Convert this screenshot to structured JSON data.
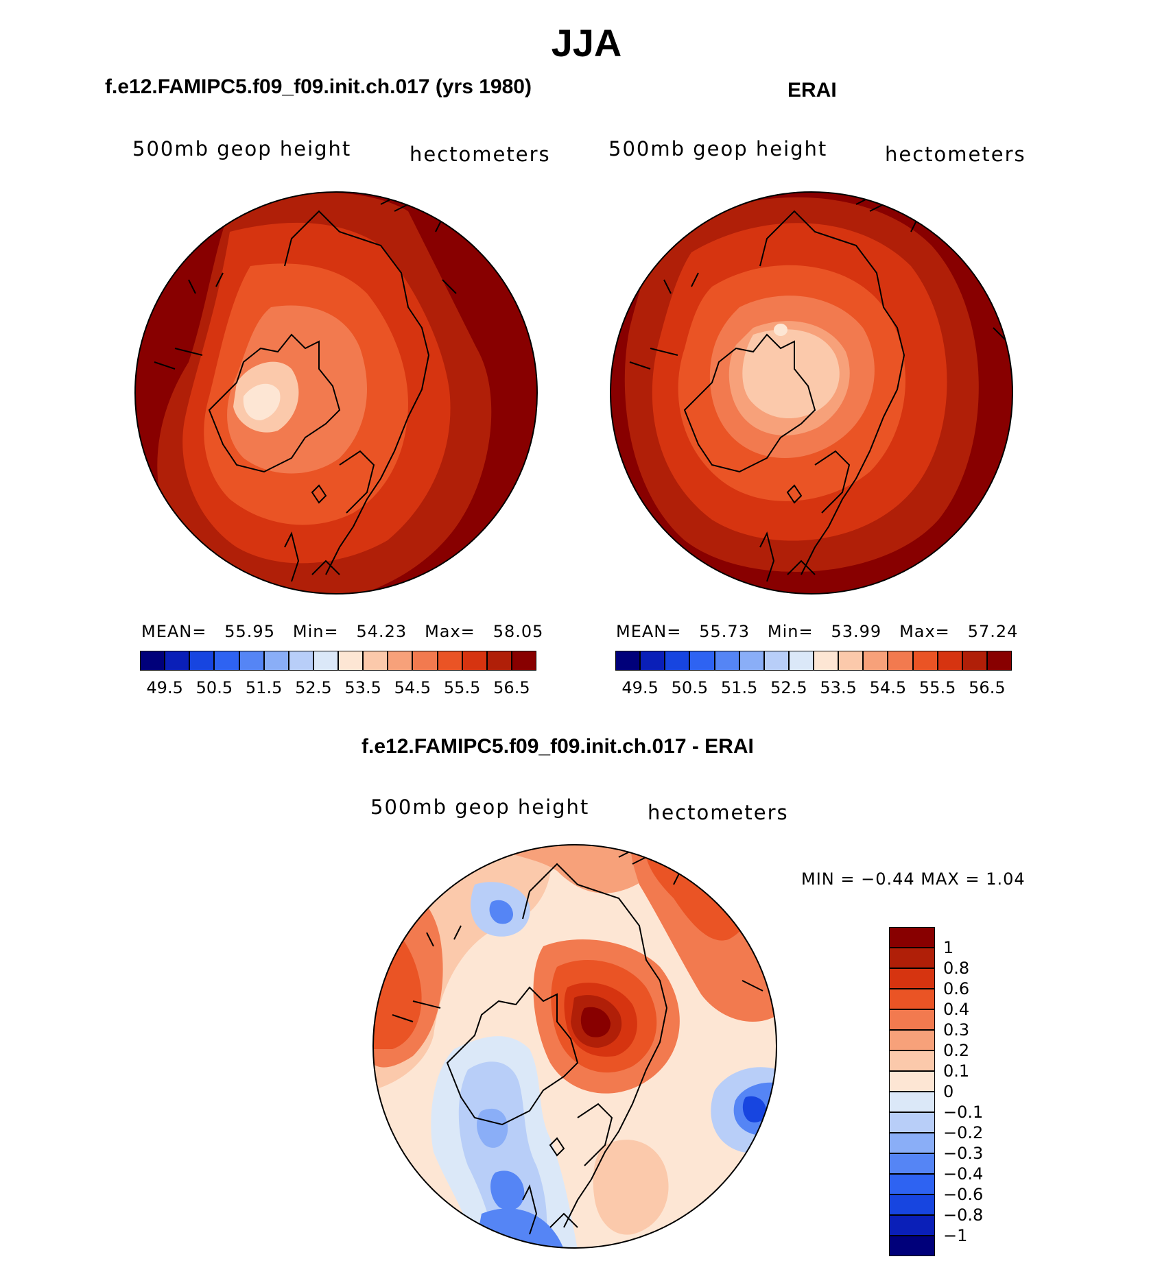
{
  "figure": {
    "title": "JJA",
    "left_panel": {
      "title": "f.e12.FAMIPC5.f09_f09.init.ch.017 (yrs 1980)",
      "variable": "500mb geop height",
      "units": "hectometers",
      "mean_label": "MEAN=",
      "mean": "55.95",
      "min_label": "Min=",
      "min": "54.23",
      "max_label": "Max=",
      "max": "58.05"
    },
    "right_panel": {
      "title": "ERAI",
      "variable": "500mb geop height",
      "units": "hectometers",
      "mean_label": "MEAN=",
      "mean": "55.73",
      "min_label": "Min=",
      "min": "53.99",
      "max_label": "Max=",
      "max": "57.24"
    },
    "diff_panel": {
      "title": "f.e12.FAMIPC5.f09_f09.init.ch.017 - ERAI",
      "variable": "500mb geop height",
      "units": "hectometers",
      "minmax_text": "MIN =   −0.44 MAX =     1.04"
    }
  },
  "colors": {
    "abs_scale": [
      "#00007a",
      "#0a1fb8",
      "#1745e0",
      "#2e63f2",
      "#5585f5",
      "#8aaef7",
      "#b8cef8",
      "#dbe8f8",
      "#fde6d4",
      "#fbc9ab",
      "#f7a17a",
      "#f27a4f",
      "#ea5425",
      "#d63410",
      "#b01f08",
      "#880000"
    ],
    "diff_scale": [
      "#0a1fb8",
      "#1745e0",
      "#2e63f2",
      "#5585f5",
      "#8aaef7",
      "#b8cef8",
      "#dbe8f8",
      "#fde6d4",
      "#fbc9ab",
      "#f7a17a",
      "#f27a4f",
      "#ea5425",
      "#d63410",
      "#b01f08",
      "#880000"
    ],
    "land_outline": "#000000"
  },
  "chart_data": [
    {
      "type": "heatmap",
      "name": "model 500mb geopotential height",
      "projection": "north polar stereographic",
      "legend_ticks": [
        "49.5",
        "50.5",
        "51.5",
        "52.5",
        "53.5",
        "54.5",
        "55.5",
        "56.5"
      ],
      "mean": 55.95,
      "min": 54.23,
      "max": 58.05
    },
    {
      "type": "heatmap",
      "name": "ERAI 500mb geopotential height",
      "projection": "north polar stereographic",
      "legend_ticks": [
        "49.5",
        "50.5",
        "51.5",
        "52.5",
        "53.5",
        "54.5",
        "55.5",
        "56.5"
      ],
      "mean": 55.73,
      "min": 53.99,
      "max": 57.24
    },
    {
      "type": "heatmap",
      "name": "model minus ERAI difference",
      "projection": "north polar stereographic",
      "legend_ticks": [
        "1",
        "0.8",
        "0.6",
        "0.4",
        "0.3",
        "0.2",
        "0.1",
        "0",
        "−0.1",
        "−0.2",
        "−0.3",
        "−0.4",
        "−0.6",
        "−0.8",
        "−1"
      ],
      "min": -0.44,
      "max": 1.04
    }
  ]
}
